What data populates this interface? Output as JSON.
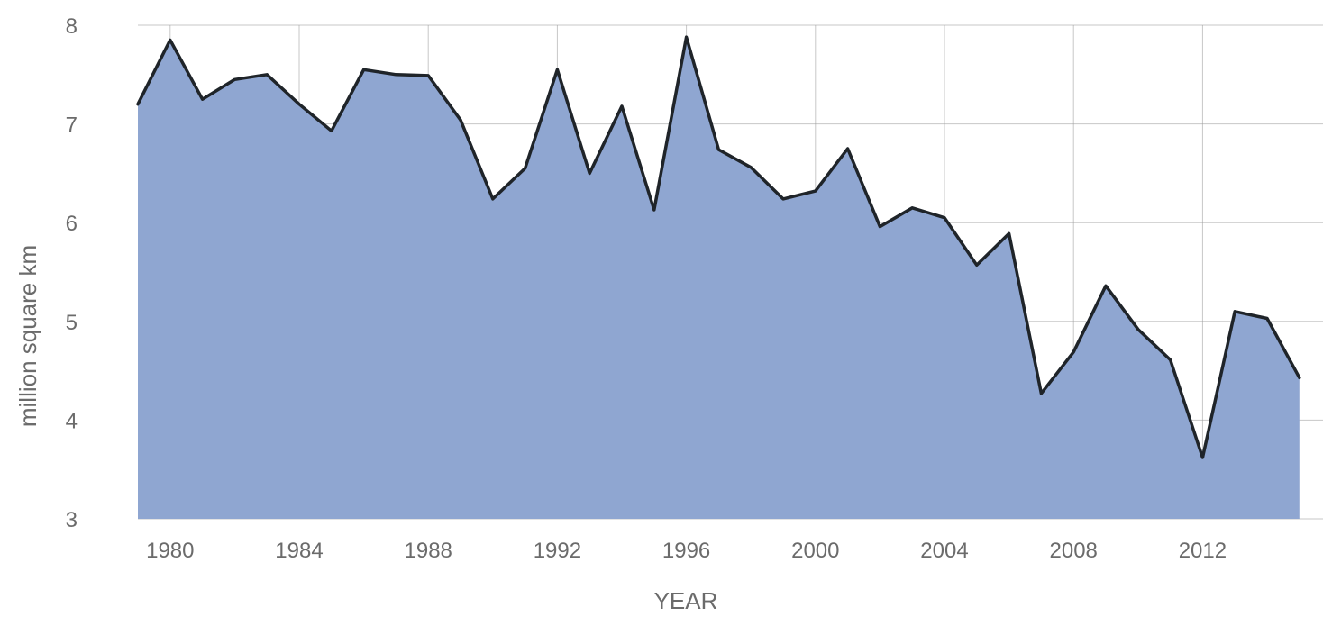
{
  "chart_data": {
    "type": "area",
    "xlabel": "YEAR",
    "ylabel": "million square km",
    "xlim": [
      1979,
      2015
    ],
    "ylim": [
      3,
      8
    ],
    "x_ticks": [
      1980,
      1984,
      1988,
      1992,
      1996,
      2000,
      2004,
      2008,
      2012
    ],
    "y_ticks": [
      3,
      4,
      5,
      6,
      7,
      8
    ],
    "grid": true,
    "colors": {
      "fill": "#8fa6d1",
      "line": "#1f2429"
    },
    "series": [
      {
        "x": [
          1979,
          1980,
          1981,
          1982,
          1983,
          1984,
          1985,
          1986,
          1987,
          1988,
          1989,
          1990,
          1991,
          1992,
          1993,
          1994,
          1995,
          1996,
          1997,
          1998,
          1999,
          2000,
          2001,
          2002,
          2003,
          2004,
          2005,
          2006,
          2007,
          2008,
          2009,
          2010,
          2011,
          2012,
          2013,
          2014,
          2015
        ],
        "values": [
          7.2,
          7.85,
          7.25,
          7.45,
          7.5,
          7.2,
          6.93,
          7.55,
          7.5,
          7.49,
          7.04,
          6.24,
          6.55,
          7.55,
          6.5,
          7.18,
          6.13,
          7.88,
          6.74,
          6.56,
          6.24,
          6.32,
          6.75,
          5.96,
          6.15,
          6.05,
          5.57,
          5.89,
          4.27,
          4.69,
          5.36,
          4.92,
          4.61,
          3.62,
          5.1,
          5.03,
          4.43
        ]
      }
    ]
  }
}
